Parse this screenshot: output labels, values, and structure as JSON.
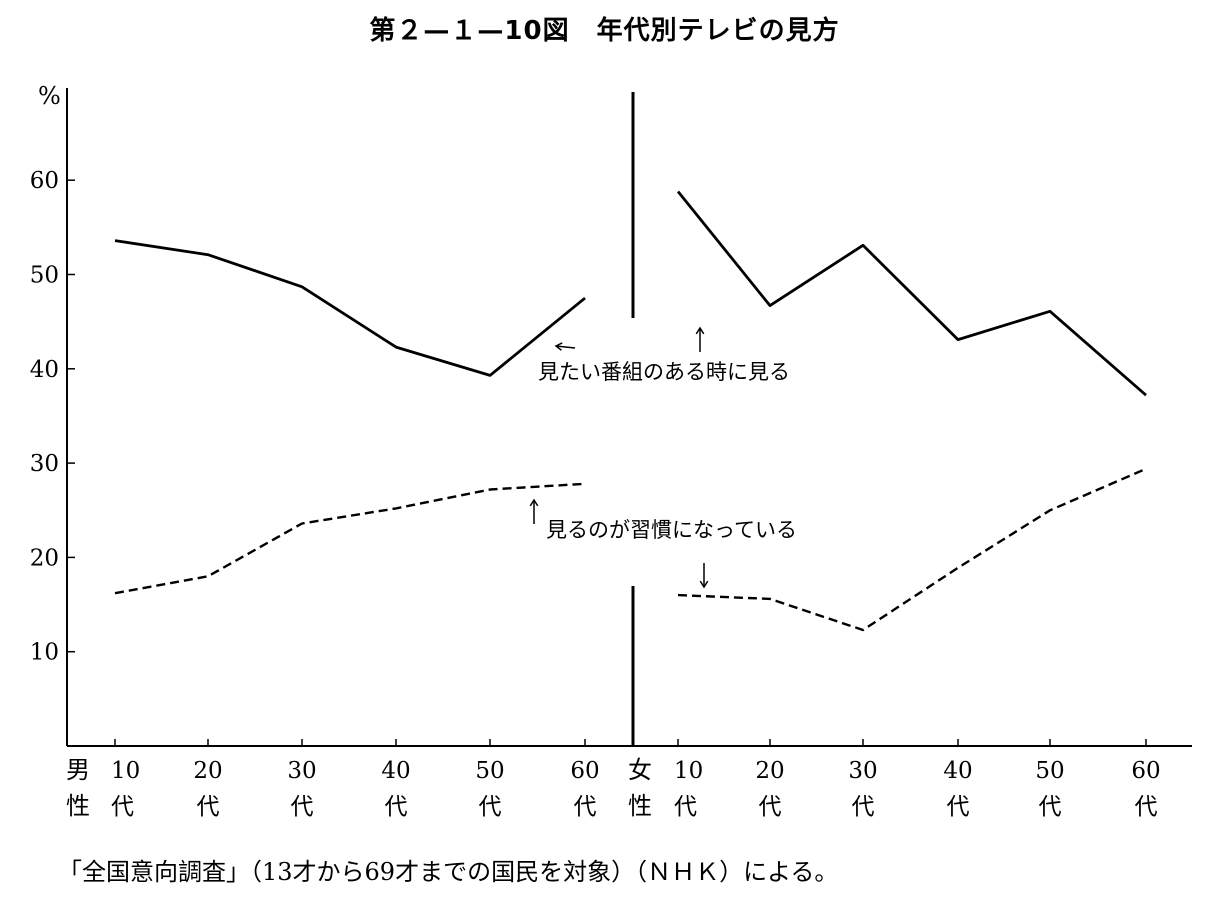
{
  "title": "第２—１—10図　年代別テレビの見方",
  "footnote": "「全国意向調査」（13才から69才までの国民を対象）（ＮＨＫ）による。",
  "chart_data": {
    "type": "line",
    "title": "第２—１—10図　年代別テレビの見方",
    "ylabel": "%",
    "ylim": [
      0,
      70
    ],
    "y_ticks": [
      10,
      20,
      30,
      40,
      50,
      60
    ],
    "grid": false,
    "groups": [
      {
        "name": "男性",
        "top_label": "男",
        "bottom_label": "性",
        "categories": [
          "10代",
          "20代",
          "30代",
          "40代",
          "50代",
          "60代"
        ],
        "tick_numbers": [
          "10",
          "20",
          "30",
          "40",
          "50",
          "60"
        ],
        "tick_suffix": "代"
      },
      {
        "name": "女性",
        "top_label": "女",
        "bottom_label": "性",
        "categories": [
          "10代",
          "20代",
          "30代",
          "40代",
          "50代",
          "60代"
        ],
        "tick_numbers": [
          "10",
          "20",
          "30",
          "40",
          "50",
          "60"
        ],
        "tick_suffix": "代"
      }
    ],
    "series": [
      {
        "name": "見たい番組のある時に見る",
        "style": "solid",
        "male": [
          53.6,
          52.1,
          48.7,
          42.3,
          39.3,
          47.5
        ],
        "female": [
          58.8,
          46.7,
          53.1,
          43.1,
          46.1,
          37.2
        ]
      },
      {
        "name": "見るのが習慣になっている",
        "style": "dashed",
        "male": [
          16.2,
          18.0,
          23.6,
          25.2,
          27.2,
          27.8
        ],
        "female": [
          16.0,
          15.6,
          12.3,
          18.9,
          25.0,
          29.4
        ]
      }
    ]
  }
}
